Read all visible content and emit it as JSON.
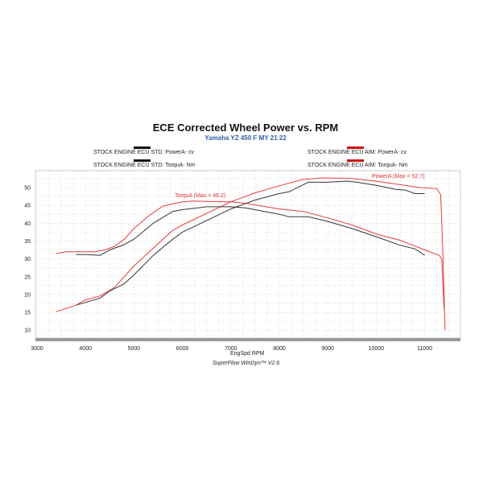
{
  "chart_data": {
    "type": "line",
    "title": "ECE Corrected Wheel Power vs. RPM",
    "subtitle": "Yamaha YZ 450 F MY 21 22",
    "xlabel": "EngSpd  RPM",
    "footer": "SuperFlow WinDyn™ V2.6",
    "xlim": [
      3000,
      12000
    ],
    "ylim": [
      8,
      53.5
    ],
    "xticks": [
      3000,
      4000,
      5000,
      6000,
      7000,
      8000,
      9000,
      10000,
      11000
    ],
    "yticks": [
      10,
      15,
      20,
      25,
      30,
      35,
      40,
      45,
      50
    ],
    "grid": true,
    "legend": [
      "STOCK ENGINE ECU STD: PowerA- cv",
      "STOCK ENGINE ECU AIM: PowerA- cv",
      "STOCK ENGINE ECU STD: TorquA- Nm",
      "STOCK ENGINE ECU AIM: TorquA- Nm"
    ],
    "annotations": [
      {
        "text": "PowerA (Max = 52.7)",
        "color": "#e03030"
      },
      {
        "text": "TorquA (Max = 46.2)",
        "color": "#e03030"
      }
    ],
    "series": [
      {
        "name": "STOCK ENGINE ECU STD: PowerA- cv",
        "color": "#333333",
        "x": [
          3800,
          4300,
          4500,
          4800,
          5000,
          5400,
          5800,
          6000,
          7000,
          7500,
          8000,
          8200,
          8600,
          9000,
          9400,
          9600,
          10000,
          10400,
          10600,
          10800,
          11000
        ],
        "y": [
          17,
          19,
          21,
          23,
          25.5,
          31,
          35.5,
          37.5,
          44,
          46.5,
          48.3,
          48.8,
          51.5,
          51.5,
          51.8,
          51.5,
          50.6,
          49.5,
          49.3,
          48.3,
          48.3
        ]
      },
      {
        "name": "STOCK ENGINE ECU AIM: PowerA- cv",
        "color": "#e83a3a",
        "x": [
          3400,
          3800,
          4000,
          4300,
          4600,
          5000,
          5400,
          5800,
          6000,
          7000,
          7500,
          8000,
          8500,
          8900,
          9500,
          10000,
          10500,
          10900,
          11250,
          11330,
          11380,
          11420
        ],
        "y": [
          15.2,
          17,
          18.5,
          19.6,
          22,
          28,
          33,
          38,
          39.5,
          46,
          48.5,
          50.5,
          52.3,
          52.7,
          52.5,
          51.8,
          50.8,
          50,
          49.7,
          48,
          30,
          10
        ]
      },
      {
        "name": "STOCK ENGINE ECU STD: TorquA- Nm",
        "color": "#333333",
        "x": [
          3800,
          4000,
          4300,
          4500,
          4800,
          5000,
          5400,
          5800,
          6000,
          6500,
          7000,
          7300,
          8000,
          8200,
          8600,
          9000,
          9500,
          10000,
          10500,
          10800,
          11000
        ],
        "y": [
          31.2,
          31.2,
          31,
          32.5,
          34,
          35.5,
          40,
          43.3,
          43.8,
          44.6,
          44.6,
          44.3,
          42.5,
          41.8,
          41.8,
          40.5,
          38.5,
          36.2,
          33.8,
          32.8,
          31
        ]
      },
      {
        "name": "STOCK ENGINE ECU AIM: TorquA- Nm",
        "color": "#e83a3a",
        "x": [
          3400,
          3600,
          4200,
          4400,
          4600,
          4800,
          5000,
          5300,
          5600,
          6000,
          6200,
          6500,
          7000,
          7300,
          8000,
          8500,
          9000,
          9500,
          10000,
          10500,
          11000,
          11300,
          11350,
          11400
        ],
        "y": [
          31.5,
          32,
          32,
          32.5,
          33.5,
          35.5,
          38.5,
          42,
          44.8,
          46,
          46.2,
          46.1,
          46,
          45.6,
          44,
          43.3,
          41.5,
          39.5,
          37,
          35.2,
          32.5,
          31,
          30,
          16
        ]
      }
    ]
  }
}
